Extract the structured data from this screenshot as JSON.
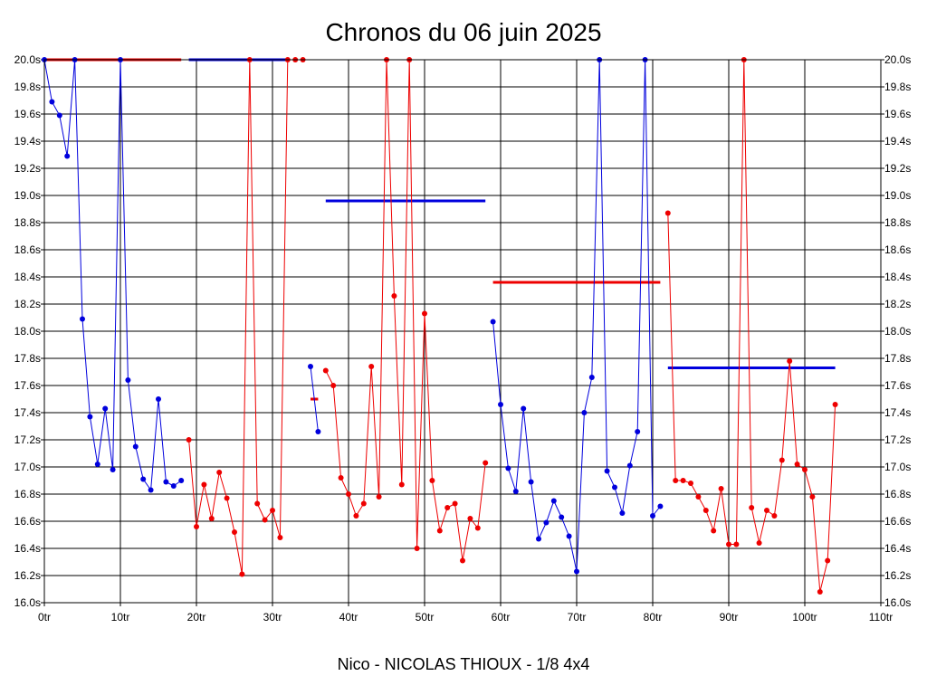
{
  "chart_data": {
    "type": "line",
    "title": "Chronos du 06 juin 2025",
    "subtitle": "Nico - NICOLAS THIOUX - 1/8 4x4",
    "xlim": [
      0,
      110
    ],
    "ylim": [
      16.0,
      20.0
    ],
    "x_ticks": [
      0,
      10,
      20,
      30,
      40,
      50,
      60,
      70,
      80,
      90,
      100,
      110
    ],
    "x_tick_labels": [
      "0tr",
      "10tr",
      "20tr",
      "30tr",
      "40tr",
      "50tr",
      "60tr",
      "70tr",
      "80tr",
      "90tr",
      "100tr",
      "110tr"
    ],
    "y_ticks": [
      16.0,
      16.2,
      16.4,
      16.6,
      16.8,
      17.0,
      17.2,
      17.4,
      17.6,
      17.8,
      18.0,
      18.2,
      18.4,
      18.6,
      18.8,
      19.0,
      19.2,
      19.4,
      19.6,
      19.8,
      20.0
    ],
    "y_tick_labels": [
      "16.0s",
      "16.2s",
      "16.4s",
      "16.6s",
      "16.8s",
      "17.0s",
      "17.2s",
      "17.4s",
      "17.6s",
      "17.8s",
      "18.0s",
      "18.2s",
      "18.4s",
      "18.6s",
      "18.8s",
      "19.0s",
      "19.2s",
      "19.4s",
      "19.6s",
      "19.8s",
      "20.0s"
    ],
    "grid": true,
    "series": [
      {
        "name": "segment-1",
        "color": "#0000dd",
        "x": [
          0,
          1,
          2,
          3,
          4,
          5,
          6,
          7,
          8,
          9,
          10,
          11,
          12,
          13,
          14,
          15,
          16,
          17,
          18
        ],
        "y": [
          20.0,
          19.69,
          19.59,
          19.29,
          20.0,
          18.09,
          17.37,
          17.02,
          17.43,
          16.98,
          20.0,
          17.64,
          17.15,
          16.91,
          16.83,
          17.5,
          16.89,
          16.86,
          16.9
        ]
      },
      {
        "name": "segment-2",
        "color": "#ee0000",
        "x": [
          19,
          20,
          21,
          22,
          23,
          24,
          25,
          26,
          27,
          28,
          29,
          30,
          31,
          32,
          33,
          34
        ],
        "y": [
          17.2,
          16.56,
          16.87,
          16.62,
          16.96,
          16.77,
          16.52,
          16.21,
          20.0,
          16.73,
          16.61,
          16.68,
          16.48,
          20.0,
          20.0,
          20.0
        ]
      },
      {
        "name": "segment-3",
        "color": "#0000dd",
        "x": [
          35,
          36
        ],
        "y": [
          17.74,
          17.26
        ]
      },
      {
        "name": "segment-4",
        "color": "#ee0000",
        "x": [
          37,
          38,
          39,
          40,
          41,
          42,
          43,
          44,
          45,
          46,
          47,
          48,
          49,
          50,
          51,
          52,
          53,
          54,
          55,
          56,
          57,
          58
        ],
        "y": [
          17.71,
          17.6,
          16.92,
          16.8,
          16.64,
          16.73,
          17.74,
          16.78,
          20.0,
          18.26,
          16.87,
          20.0,
          16.4,
          18.13,
          16.9,
          16.53,
          16.7,
          16.73,
          16.31,
          16.62,
          16.55,
          17.03
        ]
      },
      {
        "name": "segment-5",
        "color": "#0000dd",
        "x": [
          59,
          60,
          61,
          62,
          63,
          64,
          65,
          66,
          67,
          68,
          69,
          70,
          71,
          72,
          73,
          74,
          75,
          76,
          77,
          78,
          79,
          80,
          81
        ],
        "y": [
          18.07,
          17.46,
          16.99,
          16.82,
          17.43,
          16.89,
          16.47,
          16.59,
          16.75,
          16.63,
          16.49,
          16.23,
          17.4,
          17.66,
          20.0,
          16.97,
          16.85,
          16.66,
          17.01,
          17.26,
          20.0,
          16.64,
          16.71
        ]
      },
      {
        "name": "segment-6",
        "color": "#ee0000",
        "x": [
          82,
          83,
          84,
          85,
          86,
          87,
          88,
          89,
          90,
          91,
          92,
          93,
          94,
          95,
          96,
          97,
          98,
          99,
          100,
          101,
          102,
          103,
          104
        ],
        "y": [
          18.87,
          16.9,
          16.9,
          16.88,
          16.78,
          16.68,
          16.53,
          16.84,
          16.43,
          16.43,
          20.0,
          16.7,
          16.44,
          16.68,
          16.64,
          17.05,
          17.78,
          17.02,
          16.98,
          16.78,
          16.08,
          16.31,
          17.46
        ]
      }
    ],
    "average_lines": [
      {
        "color": "#ee0000",
        "x": [
          0,
          18
        ],
        "y": 20.0
      },
      {
        "color": "#0000dd",
        "x": [
          19,
          32
        ],
        "y": 20.0
      },
      {
        "color": "#ee0000",
        "x": [
          35,
          36
        ],
        "y": 17.5
      },
      {
        "color": "#0000dd",
        "x": [
          37,
          58
        ],
        "y": 18.96
      },
      {
        "color": "#ee0000",
        "x": [
          59,
          81
        ],
        "y": 18.36
      },
      {
        "color": "#0000dd",
        "x": [
          82,
          104
        ],
        "y": 17.73
      }
    ]
  }
}
